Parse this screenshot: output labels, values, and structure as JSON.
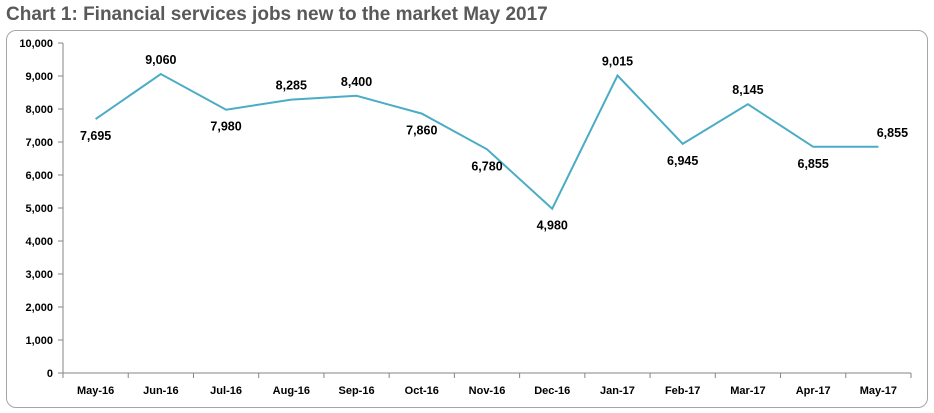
{
  "title": "Chart 1: Financial services jobs new to the market May 2017",
  "chart_data": {
    "type": "line",
    "title": "Chart 1: Financial services jobs new to the market May 2017",
    "xlabel": "",
    "ylabel": "",
    "categories": [
      "May-16",
      "Jun-16",
      "Jul-16",
      "Aug-16",
      "Sep-16",
      "Oct-16",
      "Nov-16",
      "Dec-16",
      "Jan-17",
      "Feb-17",
      "Mar-17",
      "Apr-17",
      "May-17"
    ],
    "values": [
      7695,
      9060,
      7980,
      8285,
      8400,
      7860,
      6780,
      4980,
      9015,
      6945,
      8145,
      6855,
      6855
    ],
    "data_labels": [
      "7,695",
      "9,060",
      "7,980",
      "8,285",
      "8,400",
      "7,860",
      "6,780",
      "4,980",
      "9,015",
      "6,945",
      "8,145",
      "6,855",
      "6,855"
    ],
    "yticks": [
      "0",
      "1,000",
      "2,000",
      "3,000",
      "4,000",
      "5,000",
      "6,000",
      "7,000",
      "8,000",
      "9,000",
      "10,000"
    ],
    "ylim": [
      0,
      10000
    ],
    "grid": false,
    "legend": "none",
    "line_color": "#4bacc6"
  }
}
